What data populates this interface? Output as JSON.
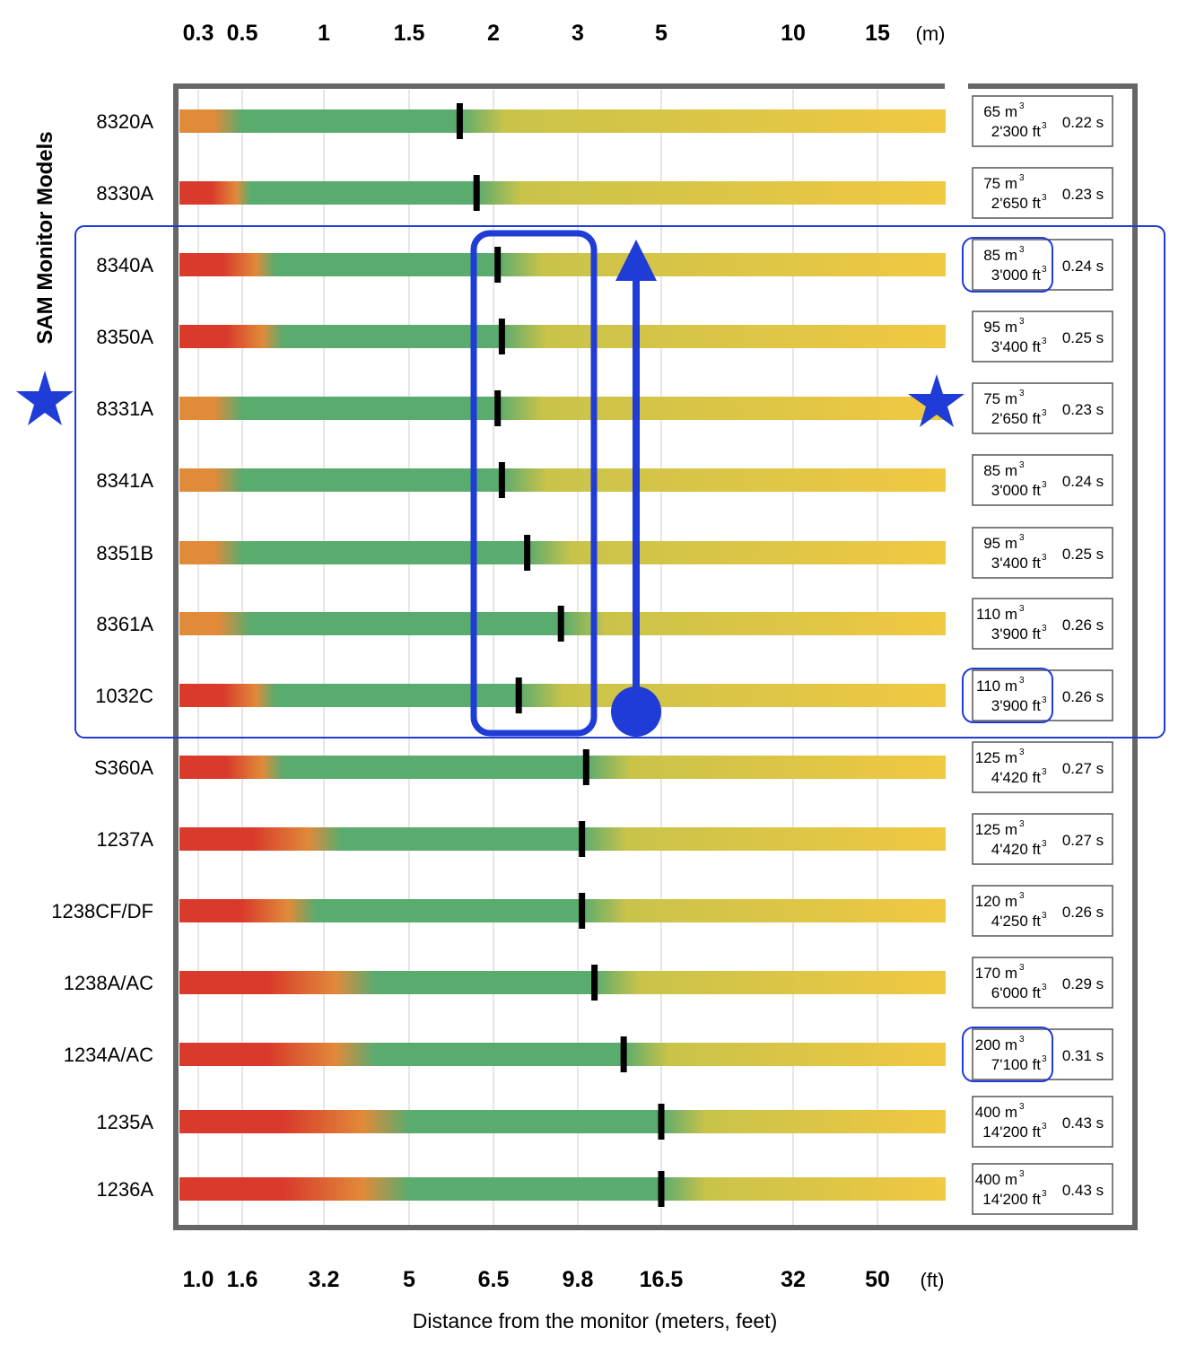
{
  "chart_data": {
    "type": "bar",
    "ylabel": "SAM Monitor Models",
    "xlabel": "Distance from the monitor (meters, feet)",
    "top_axis": {
      "unit": "(m)",
      "ticks": [
        {
          "value": 0.3,
          "label": "0.3"
        },
        {
          "value": 0.5,
          "label": "0.5"
        },
        {
          "value": 1,
          "label": "1"
        },
        {
          "value": 1.5,
          "label": "1.5"
        },
        {
          "value": 2,
          "label": "2"
        },
        {
          "value": 3,
          "label": "3"
        },
        {
          "value": 5,
          "label": "5"
        },
        {
          "value": 10,
          "label": "10"
        },
        {
          "value": 15,
          "label": "15"
        }
      ]
    },
    "bottom_axis": {
      "unit": "(ft)",
      "ticks": [
        "1.0",
        "1.6",
        "3.2",
        "5",
        "6.5",
        "9.8",
        "16.5",
        "32",
        "50"
      ]
    },
    "legend_volume_unit": "m",
    "legend_volume_unit_ft": "ft",
    "models": [
      {
        "name": "8320A",
        "marker_m": 1.8,
        "green_start_m": 0.5,
        "red": false,
        "volume_m3": "65",
        "volume_ft3": "2'300",
        "time": "0.22 s",
        "highlight": false
      },
      {
        "name": "8330A",
        "marker_m": 1.9,
        "green_start_m": 0.55,
        "red": true,
        "volume_m3": "75",
        "volume_ft3": "2'650",
        "time": "0.23 s",
        "highlight": false
      },
      {
        "name": "8340A",
        "marker_m": 2.05,
        "green_start_m": 0.7,
        "red": true,
        "volume_m3": "85",
        "volume_ft3": "3'000",
        "time": "0.24 s",
        "highlight": true
      },
      {
        "name": "8350A",
        "marker_m": 2.1,
        "green_start_m": 0.75,
        "red": true,
        "volume_m3": "95",
        "volume_ft3": "3'400",
        "time": "0.25 s",
        "highlight": false
      },
      {
        "name": "8331A",
        "marker_m": 2.05,
        "green_start_m": 0.5,
        "red": false,
        "volume_m3": "75",
        "volume_ft3": "2'650",
        "time": "0.23 s",
        "highlight": false
      },
      {
        "name": "8341A",
        "marker_m": 2.1,
        "green_start_m": 0.5,
        "red": false,
        "volume_m3": "85",
        "volume_ft3": "3'000",
        "time": "0.24 s",
        "highlight": false
      },
      {
        "name": "8351B",
        "marker_m": 2.4,
        "green_start_m": 0.5,
        "red": false,
        "volume_m3": "95",
        "volume_ft3": "3'400",
        "time": "0.25 s",
        "highlight": false
      },
      {
        "name": "8361A",
        "marker_m": 2.8,
        "green_start_m": 0.55,
        "red": false,
        "volume_m3": "110",
        "volume_ft3": "3'900",
        "time": "0.26 s",
        "highlight": false
      },
      {
        "name": "1032C",
        "marker_m": 2.3,
        "green_start_m": 0.7,
        "red": true,
        "volume_m3": "110",
        "volume_ft3": "3'900",
        "time": "0.26 s",
        "highlight": true
      },
      {
        "name": "S360A",
        "marker_m": 3.2,
        "green_start_m": 0.75,
        "red": true,
        "volume_m3": "125",
        "volume_ft3": "4'420",
        "time": "0.27 s",
        "highlight": false
      },
      {
        "name": "1237A",
        "marker_m": 3.1,
        "green_start_m": 1.1,
        "red": true,
        "volume_m3": "125",
        "volume_ft3": "4'420",
        "time": "0.27 s",
        "highlight": false
      },
      {
        "name": "1238CF/DF",
        "marker_m": 3.1,
        "green_start_m": 0.95,
        "red": true,
        "volume_m3": "120",
        "volume_ft3": "4'250",
        "time": "0.26 s",
        "highlight": false
      },
      {
        "name": "1238A/AC",
        "marker_m": 3.4,
        "green_start_m": 1.3,
        "red": true,
        "volume_m3": "170",
        "volume_ft3": "6'000",
        "time": "0.29 s",
        "highlight": false
      },
      {
        "name": "1234A/AC",
        "marker_m": 4.1,
        "green_start_m": 1.3,
        "red": true,
        "volume_m3": "200",
        "volume_ft3": "7'100",
        "time": "0.31 s",
        "highlight": true
      },
      {
        "name": "1235A",
        "marker_m": 5.0,
        "green_start_m": 1.5,
        "red": true,
        "volume_m3": "400",
        "volume_ft3": "14'200",
        "time": "0.43 s",
        "highlight": false
      },
      {
        "name": "1236A",
        "marker_m": 5.0,
        "green_start_m": 1.5,
        "red": true,
        "volume_m3": "400",
        "volume_ft3": "14'200",
        "time": "0.43 s",
        "highlight": false
      }
    ],
    "annotations": {
      "group_highlight_rows": [
        2,
        8
      ],
      "column_highlight_m": [
        2.0,
        3.1
      ],
      "arrow_at_m": 4.1,
      "stars": 2
    },
    "colors": {
      "red": "#d93a2b",
      "orange": "#e08a3a",
      "green": "#5aab6e",
      "yellow": "#f1c842",
      "olive": "#c9c34a",
      "marker": "#000000",
      "frame": "#666666",
      "highlight": "#1f3cd6",
      "grid": "#cccccc"
    }
  }
}
